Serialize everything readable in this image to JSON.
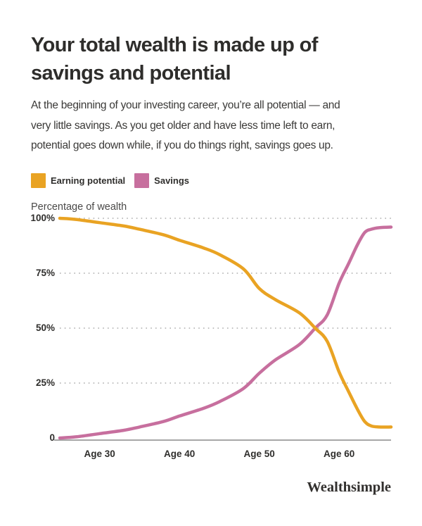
{
  "header": {
    "title_lines": [
      "Your total wealth is made up of",
      "savings and potential"
    ],
    "description_lines": [
      "At the beginning of your investing career, you’re all potential — and",
      "very little savings. As you get older and have less time left to earn,",
      "potential goes down while, if you do things right, savings goes up."
    ]
  },
  "legend": {
    "items": [
      {
        "label": "Earning potential",
        "color": "#E9A323"
      },
      {
        "label": "Savings",
        "color": "#C76F9E"
      }
    ]
  },
  "chart_data": {
    "type": "line",
    "title": "Your total wealth is made up of savings and potential",
    "xlabel": "",
    "ylabel": "Percentage of wealth",
    "ylim": [
      0,
      100
    ],
    "x_range": [
      25,
      66.5
    ],
    "grid": "dotted horizontal gridlines at 25/50/75/100",
    "grid_color": "#ACACAC",
    "axis_color": "#8A8A8A",
    "legend_position": "top-left",
    "x": [
      25,
      27,
      30,
      33,
      35,
      38,
      40,
      43,
      45,
      48,
      50,
      52,
      55,
      57,
      58.5,
      60,
      61.2,
      62.3,
      63.2,
      64,
      65,
      66.5
    ],
    "series": [
      {
        "name": "Savings",
        "color": "#C76F9E",
        "values": [
          0,
          0.5,
          2,
          3.5,
          5,
          7.5,
          10,
          13.5,
          16.5,
          22.5,
          29.5,
          35.5,
          42.5,
          50,
          56,
          70.5,
          79.5,
          88,
          93.5,
          95,
          95.7,
          96
        ]
      },
      {
        "name": "Earning potential",
        "color": "#E9A323",
        "values": [
          100,
          99.5,
          98,
          96.5,
          95,
          92.5,
          90,
          86.5,
          83.5,
          77,
          68,
          63,
          57,
          50,
          44,
          30,
          21,
          13,
          7.5,
          5.5,
          5,
          5
        ]
      }
    ],
    "yticks": [
      {
        "value": 100,
        "label": "100%"
      },
      {
        "value": 75,
        "label": "75%"
      },
      {
        "value": 50,
        "label": "50%"
      },
      {
        "value": 25,
        "label": "25%"
      },
      {
        "value": 0,
        "label": "0"
      }
    ],
    "xticks": [
      {
        "value": 30,
        "label": "Age 30"
      },
      {
        "value": 40,
        "label": "Age 40"
      },
      {
        "value": 50,
        "label": "Age 50"
      },
      {
        "value": 60,
        "label": "Age 60"
      }
    ]
  },
  "footer": {
    "wordmark": "Wealthsimple"
  }
}
